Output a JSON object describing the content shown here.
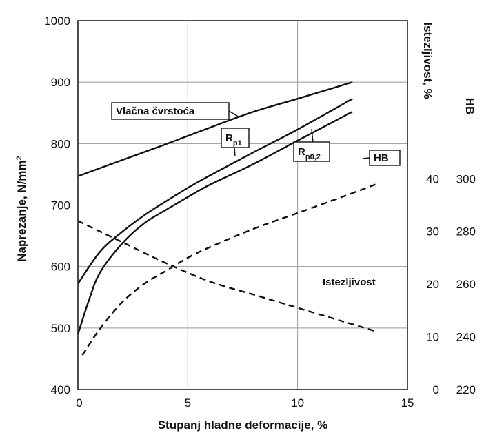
{
  "chart_data": {
    "type": "line",
    "title": "",
    "xlabel": "Stupanj hladne deformacije, %",
    "ylabel": "Naprezanje, N/mm",
    "ylabel_sup": "2",
    "y2label": "Istezljivost, %",
    "y3label": "HB",
    "xlim": [
      0,
      15
    ],
    "ylim": [
      400,
      1000
    ],
    "y2lim": [
      0,
      70
    ],
    "y3lim": [
      220,
      360
    ],
    "x_ticks": [
      "0",
      "5",
      "10",
      "15"
    ],
    "y_ticks": [
      "400",
      "500",
      "600",
      "700",
      "800",
      "900",
      "1000"
    ],
    "y2_ticks": [
      "0",
      "10",
      "20",
      "30",
      "40"
    ],
    "y3_ticks": [
      "220",
      "240",
      "260",
      "280",
      "300"
    ],
    "grid": true,
    "series": [
      {
        "name": "Vlačna čvrstoća",
        "axis": "left",
        "style": "solid",
        "x": [
          0,
          2,
          4,
          6,
          8,
          10,
          12.5
        ],
        "values": [
          747,
          773,
          799,
          826,
          852,
          873,
          900
        ]
      },
      {
        "name": "Rp1",
        "name_main": "R",
        "name_sub": "p1",
        "axis": "left",
        "style": "solid",
        "x": [
          0,
          1,
          2,
          3,
          4,
          5,
          6,
          8,
          10,
          12.5
        ],
        "values": [
          572,
          624,
          656,
          683,
          706,
          728,
          748,
          786,
          823,
          873
        ]
      },
      {
        "name": "Rp0,2",
        "name_main": "R",
        "name_sub": "p0,2",
        "axis": "left",
        "style": "solid",
        "x": [
          0,
          0.5,
          1,
          2,
          3,
          4,
          5,
          6,
          8,
          10,
          12.5
        ],
        "values": [
          490,
          545,
          590,
          637,
          670,
          692,
          713,
          733,
          767,
          805,
          852
        ]
      },
      {
        "name": "HB",
        "axis": "right-hb",
        "style": "dashed",
        "x": [
          0.2,
          1,
          2,
          3,
          4,
          5,
          6,
          8,
          10,
          12,
          13.6
        ],
        "values": [
          233,
          243,
          253,
          260,
          265,
          270,
          274,
          281,
          287,
          293,
          298
        ]
      },
      {
        "name": "Istezljivost",
        "axis": "right-elong",
        "style": "dashed",
        "x": [
          0,
          2,
          4,
          6,
          8,
          10,
          12,
          13.6
        ],
        "values": [
          32,
          28,
          24,
          20.5,
          18,
          15.5,
          13,
          11
        ]
      }
    ]
  }
}
